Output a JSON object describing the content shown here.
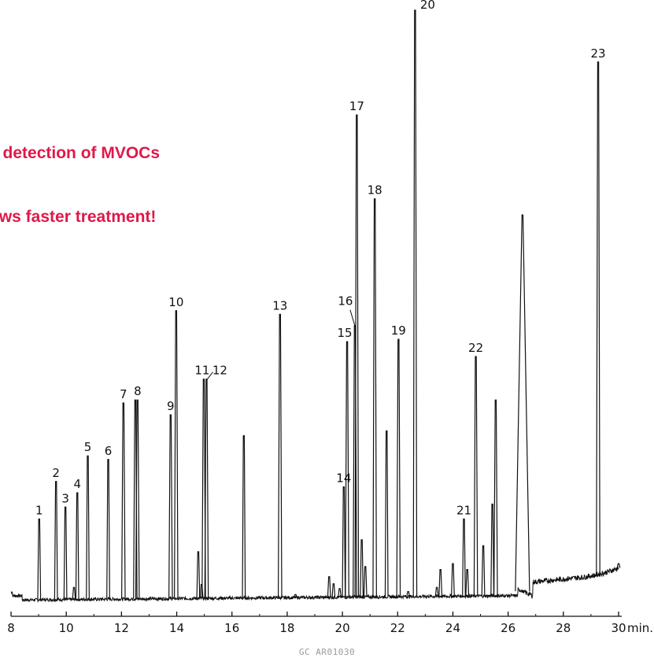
{
  "headline": {
    "line1": "y detection of MVOCs",
    "line2": "ows faster treatment!",
    "color": "#e0184a"
  },
  "footer_code": "GC AR01030",
  "chart_data": {
    "type": "line",
    "xlim": [
      8,
      30
    ],
    "ylim": [
      0,
      100
    ],
    "x_ticks": [
      8,
      10,
      12,
      14,
      16,
      18,
      20,
      22,
      24,
      26,
      28,
      30
    ],
    "x_tick_labels": [
      "8",
      "10",
      "12",
      "14",
      "16",
      "18",
      "20",
      "22",
      "24",
      "26",
      "28",
      "30"
    ],
    "x_unit": "min.",
    "grid": false,
    "line_color": "#111111",
    "labeled_peaks": [
      {
        "label": "1",
        "x": 9.02,
        "height": 14.5
      },
      {
        "label": "2",
        "x": 9.63,
        "height": 20.8
      },
      {
        "label": "3",
        "x": 9.97,
        "height": 16.5
      },
      {
        "label": "4",
        "x": 10.4,
        "height": 18.9
      },
      {
        "label": "5",
        "x": 10.78,
        "height": 25.1
      },
      {
        "label": "6",
        "x": 11.52,
        "height": 24.5
      },
      {
        "label": "7",
        "x": 12.07,
        "height": 34.0
      },
      {
        "label": "8",
        "x": 12.5,
        "height": 34.5
      },
      {
        "label": "9",
        "x": 13.78,
        "height": 32.0
      },
      {
        "label": "10",
        "x": 13.98,
        "height": 49.5
      },
      {
        "label": "11",
        "x": 14.98,
        "height": 38.0
      },
      {
        "label": "12",
        "x": 15.08,
        "height": 38.0
      },
      {
        "label": "13",
        "x": 17.74,
        "height": 48.9
      },
      {
        "label": "14",
        "x": 20.05,
        "height": 19.9
      },
      {
        "label": "15",
        "x": 20.17,
        "height": 44.3
      },
      {
        "label": "16",
        "x": 20.45,
        "height": 47.0
      },
      {
        "label": "17",
        "x": 20.52,
        "height": 82.4
      },
      {
        "label": "18",
        "x": 21.17,
        "height": 68.3
      },
      {
        "label": "19",
        "x": 22.03,
        "height": 44.7
      },
      {
        "label": "20",
        "x": 22.63,
        "height": 100.0
      },
      {
        "label": "21",
        "x": 24.4,
        "height": 14.5
      },
      {
        "label": "22",
        "x": 24.83,
        "height": 41.8
      },
      {
        "label": "23",
        "x": 29.26,
        "height": 91.3
      }
    ],
    "unlabeled_peaks": [
      {
        "x": 10.28,
        "height": 3.0
      },
      {
        "x": 12.58,
        "height": 34.5
      },
      {
        "x": 14.78,
        "height": 9.0
      },
      {
        "x": 14.9,
        "height": 3.5
      },
      {
        "x": 16.43,
        "height": 28.5
      },
      {
        "x": 18.3,
        "height": 1.8
      },
      {
        "x": 19.52,
        "height": 4.8
      },
      {
        "x": 19.68,
        "height": 3.6
      },
      {
        "x": 19.9,
        "height": 2.8
      },
      {
        "x": 20.7,
        "height": 11.0
      },
      {
        "x": 20.83,
        "height": 6.5
      },
      {
        "x": 21.6,
        "height": 29.3
      },
      {
        "x": 22.38,
        "height": 2.3
      },
      {
        "x": 23.42,
        "height": 3.0
      },
      {
        "x": 23.55,
        "height": 6.0
      },
      {
        "x": 24.0,
        "height": 7.0
      },
      {
        "x": 24.52,
        "height": 6.0
      },
      {
        "x": 25.1,
        "height": 10.0
      },
      {
        "x": 25.43,
        "height": 17.0
      },
      {
        "x": 25.55,
        "height": 34.5
      },
      {
        "x": 26.52,
        "height": 65.6
      },
      {
        "x": 30.0,
        "height": 7.0
      }
    ]
  }
}
